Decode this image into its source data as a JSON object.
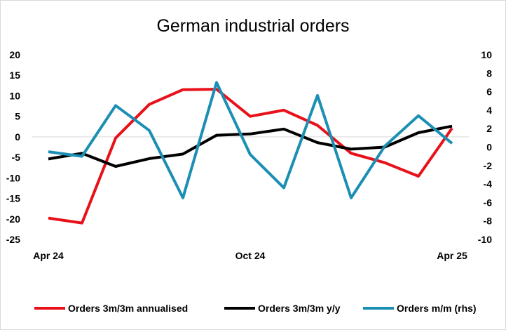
{
  "chart_data": {
    "type": "line",
    "title": "German industrial orders",
    "x": [
      "Apr 24",
      "May 24",
      "Jun 24",
      "Jul 24",
      "Aug 24",
      "Sep 24",
      "Oct 24",
      "Nov 24",
      "Dec 24",
      "Jan 25",
      "Feb 25",
      "Mar 25",
      "Apr 25"
    ],
    "x_tick_labels": [
      "Apr 24",
      "",
      "",
      "",
      "",
      "",
      "Oct 24",
      "",
      "",
      "",
      "",
      "",
      "Apr 25"
    ],
    "y_left": {
      "lim": [
        -25,
        20
      ],
      "ticks": [
        20,
        15,
        10,
        5,
        0,
        -5,
        -10,
        -15,
        -20,
        -25
      ]
    },
    "y_right": {
      "lim": [
        -10,
        10
      ],
      "ticks": [
        10,
        8,
        6,
        4,
        2,
        0,
        -2,
        -4,
        -6,
        -8,
        -10
      ]
    },
    "grid": false,
    "legend_position": "bottom",
    "series": [
      {
        "name": "Orders 3m/3m annualised",
        "axis": "left",
        "color": "#e8111a",
        "values": [
          -19.8,
          -21.0,
          -0.3,
          7.9,
          11.5,
          11.6,
          5.0,
          6.5,
          2.8,
          -4.0,
          -6.3,
          -9.6,
          2.1
        ]
      },
      {
        "name": "Orders 3m/3m y/y",
        "axis": "left",
        "color": "#000000",
        "values": [
          -5.4,
          -4.0,
          -7.2,
          -5.3,
          -4.2,
          0.4,
          0.7,
          1.9,
          -1.4,
          -3.0,
          -2.5,
          1.0,
          2.6
        ]
      },
      {
        "name": "Orders m/m (rhs)",
        "axis": "right",
        "color": "#1b8fb3",
        "values": [
          -0.5,
          -1.0,
          4.5,
          1.8,
          -5.5,
          7.0,
          -0.8,
          -4.4,
          5.6,
          -5.5,
          0.1,
          3.4,
          0.4
        ]
      }
    ]
  }
}
